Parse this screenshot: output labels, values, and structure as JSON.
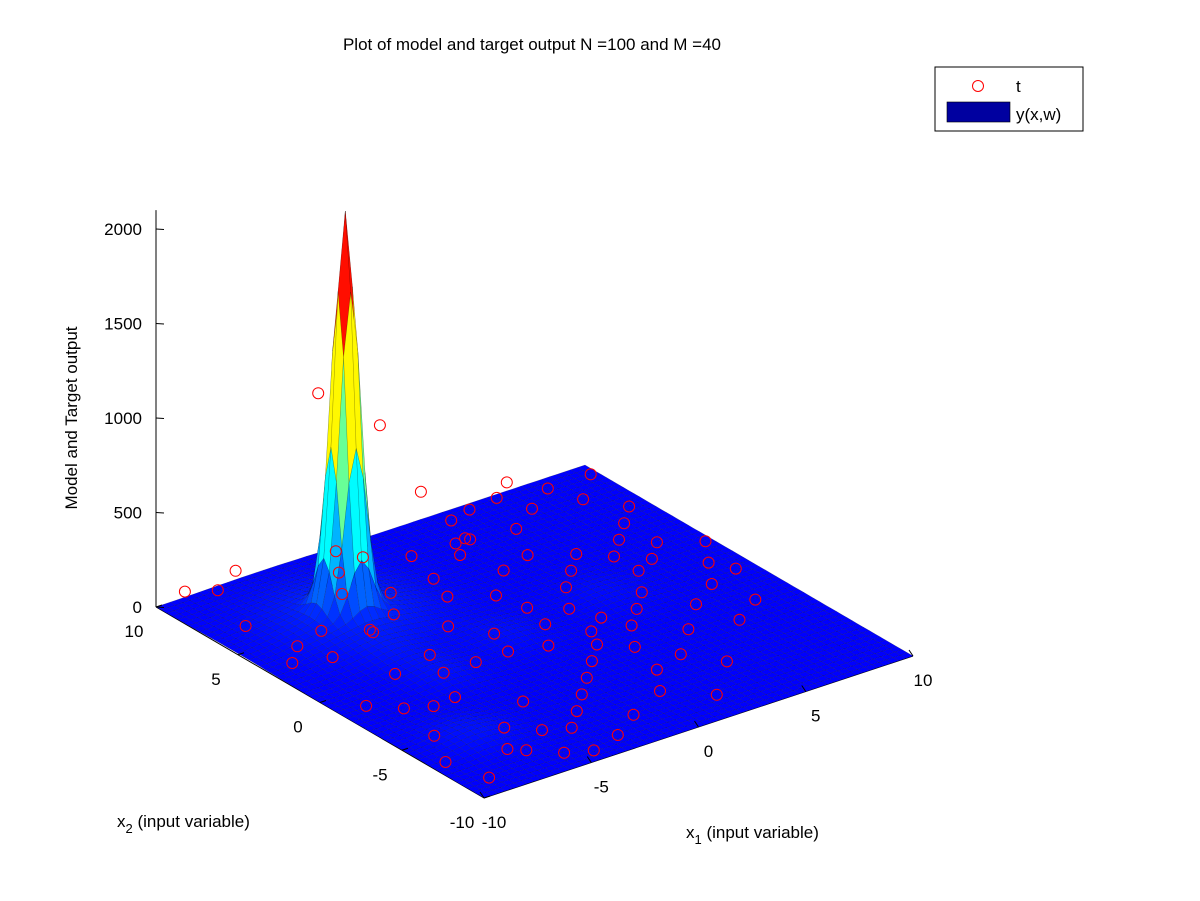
{
  "chart_data": {
    "type": "surface3d-scatter",
    "title": "Plot of model and target output N =100 and M =40",
    "xlabel": {
      "main": "x",
      "sub": "1",
      "rest": " (input variable)"
    },
    "ylabel": {
      "main": "x",
      "sub": "2",
      "rest": " (input variable)"
    },
    "zlabel": "Model and Target output",
    "xlim": [
      -10,
      10
    ],
    "ylim": [
      -10,
      10
    ],
    "zlim": [
      0,
      2100
    ],
    "x_ticks": [
      {
        "v": -10,
        "label": "-10"
      },
      {
        "v": -5,
        "label": "-5"
      },
      {
        "v": 0,
        "label": "0"
      },
      {
        "v": 5,
        "label": "5"
      },
      {
        "v": 10,
        "label": "10"
      }
    ],
    "y_ticks": [
      {
        "v": -10,
        "label": "-10"
      },
      {
        "v": -5,
        "label": "-5"
      },
      {
        "v": 0,
        "label": "0"
      },
      {
        "v": 5,
        "label": "5"
      },
      {
        "v": 10,
        "label": "10"
      }
    ],
    "z_ticks": [
      {
        "v": 0,
        "label": "0"
      },
      {
        "v": 500,
        "label": "500"
      },
      {
        "v": 1000,
        "label": "1000"
      },
      {
        "v": 1500,
        "label": "1500"
      },
      {
        "v": 2000,
        "label": "2000"
      }
    ],
    "colormap": "jet",
    "legend": {
      "position": "top-right",
      "entries": [
        {
          "label": "t",
          "marker": "circle",
          "color": "#ff0000"
        },
        {
          "label": "y(x,w)",
          "marker": "patch",
          "color": "#0000a0"
        }
      ]
    },
    "surface": {
      "name": "y(x,w)",
      "bumps": [
        {
          "x": -5,
          "y": 5,
          "height": 2070,
          "sigma": 0.5
        },
        {
          "x": -5,
          "y": 5,
          "height": 90,
          "sigma": 2.2
        },
        {
          "x": -7.2,
          "y": -5.5,
          "height": 38,
          "sigma": 1.2
        },
        {
          "x": -5,
          "y": -0.8,
          "height": 30,
          "sigma": 1.1
        },
        {
          "x": -1,
          "y": 0.3,
          "height": 25,
          "sigma": 1.1
        },
        {
          "x": -5.5,
          "y": 1.5,
          "height": 20,
          "sigma": 0.9
        },
        {
          "x": 4,
          "y": 1,
          "height": 20,
          "sigma": 1.2
        }
      ]
    },
    "targets": {
      "name": "t",
      "points": [
        [
          -9.7,
          0.5,
          1600
        ],
        [
          -9.5,
          -3.0,
          1600
        ],
        [
          -9.8,
          8.5,
          150
        ],
        [
          -8.2,
          7.5,
          250
        ],
        [
          -7.5,
          -5.0,
          1000
        ],
        [
          -6.0,
          -3.0,
          30
        ],
        [
          -5.0,
          -1.0,
          20
        ],
        [
          -4.2,
          -4.8,
          30
        ],
        [
          -3.0,
          0.0,
          600
        ],
        [
          -3.0,
          3.0,
          700
        ],
        [
          -1.5,
          2.0,
          600
        ],
        [
          1.0,
          3.0,
          600
        ],
        [
          -7.5,
          9.5,
          20
        ],
        [
          -8.5,
          6.5,
          20
        ],
        [
          -6.5,
          4.5,
          20
        ],
        [
          -7.5,
          2.5,
          20
        ],
        [
          -6.0,
          2.0,
          120
        ],
        [
          -5.0,
          3.5,
          20
        ],
        [
          -3.5,
          4.0,
          20
        ],
        [
          -2.5,
          2.0,
          20
        ],
        [
          -6.5,
          0.0,
          20
        ],
        [
          -4.5,
          0.5,
          20
        ],
        [
          -3.5,
          -1.0,
          20
        ],
        [
          -2.0,
          -1.0,
          20
        ],
        [
          -1.5,
          0.5,
          20
        ],
        [
          -0.5,
          -1.5,
          20
        ],
        [
          0.5,
          0.0,
          20
        ],
        [
          1.5,
          -1.5,
          20
        ],
        [
          2.0,
          0.5,
          20
        ],
        [
          3.0,
          2.0,
          20
        ],
        [
          4.0,
          3.0,
          20
        ],
        [
          5.0,
          4.0,
          20
        ],
        [
          6.0,
          3.0,
          20
        ],
        [
          7.0,
          4.0,
          20
        ],
        [
          8.0,
          5.0,
          20
        ],
        [
          9.0,
          6.0,
          20
        ],
        [
          -9.0,
          -1.5,
          20
        ],
        [
          -8.0,
          -2.5,
          20
        ],
        [
          -7.0,
          -3.0,
          20
        ],
        [
          -6.0,
          -6.0,
          20
        ],
        [
          -5.0,
          -7.0,
          20
        ],
        [
          -4.0,
          -7.5,
          20
        ],
        [
          -3.0,
          -6.5,
          20
        ],
        [
          -2.0,
          -5.5,
          20
        ],
        [
          -1.0,
          -4.5,
          20
        ],
        [
          0.0,
          -3.5,
          20
        ],
        [
          1.0,
          -2.5,
          20
        ],
        [
          2.0,
          -3.5,
          20
        ],
        [
          3.0,
          -2.0,
          20
        ],
        [
          4.0,
          -1.0,
          20
        ],
        [
          5.0,
          0.0,
          20
        ],
        [
          6.0,
          1.5,
          20
        ],
        [
          7.0,
          2.0,
          20
        ],
        [
          8.0,
          3.0,
          20
        ],
        [
          -2.5,
          5.5,
          20
        ],
        [
          -1.0,
          4.0,
          20
        ],
        [
          0.5,
          3.0,
          20
        ],
        [
          2.0,
          4.5,
          20
        ],
        [
          3.5,
          5.0,
          20
        ],
        [
          -4.0,
          6.5,
          20
        ],
        [
          -3.0,
          8.0,
          20
        ],
        [
          -1.5,
          8.5,
          20
        ],
        [
          0.0,
          7.5,
          20
        ],
        [
          1.5,
          6.5,
          20
        ],
        [
          2.5,
          7.5,
          20
        ],
        [
          4.5,
          7.0,
          20
        ],
        [
          6.0,
          8.0,
          20
        ],
        [
          7.5,
          9.0,
          20
        ],
        [
          -8.0,
          4.0,
          20
        ],
        [
          -9.0,
          3.0,
          20
        ],
        [
          -6.5,
          -8.0,
          20
        ],
        [
          -5.5,
          -9.0,
          20
        ],
        [
          -4.5,
          -9.5,
          20
        ],
        [
          -3.0,
          -9.0,
          20
        ],
        [
          -1.5,
          -8.0,
          20
        ],
        [
          0.5,
          -7.0,
          20
        ],
        [
          1.5,
          -5.5,
          20
        ],
        [
          3.0,
          -5.0,
          20
        ],
        [
          4.5,
          -3.5,
          20
        ],
        [
          6.0,
          -2.0,
          20
        ],
        [
          7.5,
          -1.0,
          20
        ],
        [
          8.5,
          0.5,
          20
        ],
        [
          9.5,
          2.0,
          20
        ],
        [
          9.0,
          -0.5,
          20
        ],
        [
          -0.5,
          5.5,
          20
        ],
        [
          0.8,
          1.5,
          20
        ],
        [
          2.5,
          -0.8,
          20
        ],
        [
          -7.0,
          -7.5,
          20
        ],
        [
          -8.5,
          -5.0,
          20
        ],
        [
          -9.5,
          -7.0,
          20
        ],
        [
          -9.0,
          -9.0,
          20
        ],
        [
          8.0,
          7.5,
          20
        ],
        [
          9.5,
          9.0,
          20
        ],
        [
          5.5,
          9.5,
          20
        ],
        [
          3.0,
          9.0,
          20
        ],
        [
          -2.0,
          9.5,
          20
        ],
        [
          6.5,
          -4.0,
          20
        ],
        [
          8.0,
          -3.0,
          20
        ],
        [
          4.0,
          -6.5,
          20
        ],
        [
          2.0,
          -8.5,
          20
        ]
      ]
    }
  }
}
